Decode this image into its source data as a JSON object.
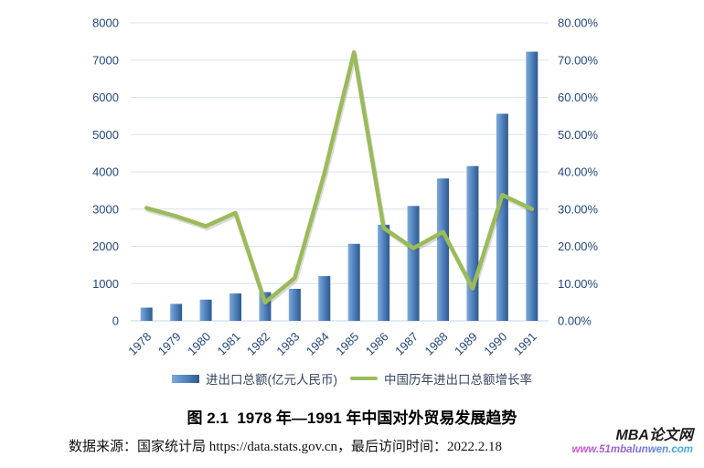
{
  "chart_data": {
    "type": "combo-bar-line",
    "title": "",
    "categories": [
      "1978",
      "1979",
      "1980",
      "1981",
      "1982",
      "1983",
      "1984",
      "1985",
      "1986",
      "1987",
      "1988",
      "1989",
      "1990",
      "1991"
    ],
    "series": [
      {
        "name": "进出口总额(亿元人民币)",
        "type": "bar",
        "axis": "left",
        "values": [
          355,
          455,
          570,
          735,
          771,
          860,
          1201,
          2067,
          2580,
          3084,
          3822,
          4156,
          5560,
          7226
        ]
      },
      {
        "name": "中国历年进出口总额增长率",
        "type": "line",
        "axis": "right",
        "values": [
          30.3,
          28.1,
          25.4,
          29.0,
          4.9,
          11.5,
          39.6,
          72.1,
          24.9,
          19.5,
          23.9,
          8.7,
          33.8,
          30.0
        ]
      }
    ],
    "left_axis": {
      "min": 0,
      "max": 8000,
      "step": 1000,
      "ticks": [
        "0",
        "1000",
        "2000",
        "3000",
        "4000",
        "5000",
        "6000",
        "7000",
        "8000"
      ]
    },
    "right_axis": {
      "min": 0,
      "max": 80,
      "step": 10,
      "ticks": [
        "0.00%",
        "10.00%",
        "20.00%",
        "30.00%",
        "40.00%",
        "50.00%",
        "60.00%",
        "70.00%",
        "80.00%"
      ]
    },
    "grid": true,
    "legend_position": "bottom",
    "colors": {
      "bar_light": "#7FA8D9",
      "bar_mid": "#4F81BD",
      "bar_dark": "#2E598C",
      "line": "#9BBB59",
      "axis_text": "#24477E",
      "grid": "#D9E2F1"
    }
  },
  "caption": "图 2.1  1978 年—1991 年中国对外贸易发展趋势",
  "source": "数据来源：国家统计局 https://data.stats.gov.cn，最后访问时间：2022.2.18",
  "watermark": {
    "title": "MBA论文网",
    "url": "www.51mbalunwen.com"
  }
}
